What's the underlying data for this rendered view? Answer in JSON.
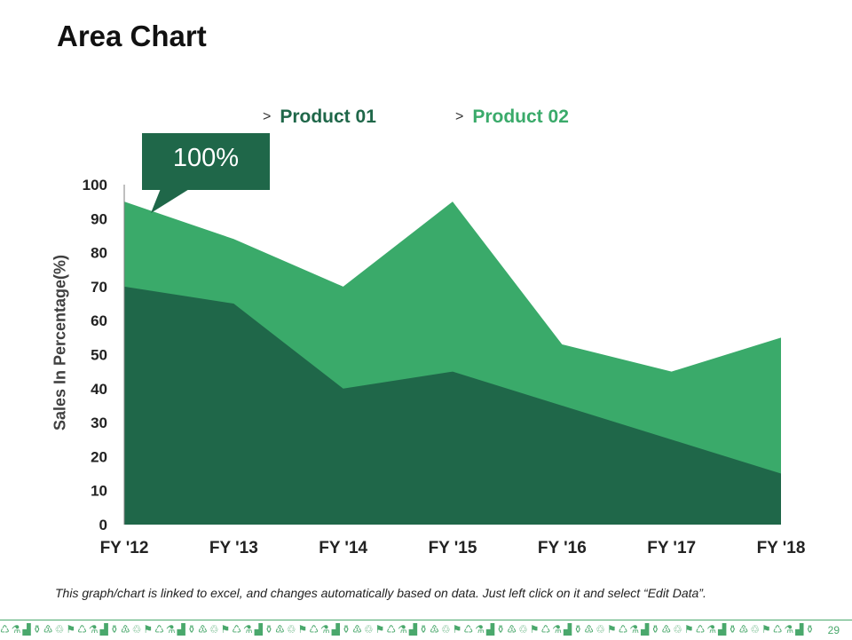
{
  "slide": {
    "title": "Area Chart",
    "callout_text": "100%",
    "footnote": "This graph/chart is linked to excel, and changes automatically based on data. Just left click on it and select “Edit Data”.",
    "page_number": "29",
    "footer_pattern": "♺⚗▟⚱♳♲⚑♺⚗▟⚱♳♲⚑♺⚗▟⚱♳♲⚑♺⚗▟⚱♳♲⚑♺⚗▟⚱♳♲⚑♺⚗▟⚱♳♲⚑♺⚗▟⚱♳♲⚑♺⚗▟⚱♳♲⚑♺⚗▟⚱♳♲⚑♺⚗▟⚱♳♲⚑♺⚗▟⚱♳♲⚑♺⚗▟⚱♳♲⚑♺⚗▟⚱♳♲⚑♺⚗▟⚱♳♲⚑♺⚗▟⚱♳♲⚑"
  },
  "legend": {
    "chevron": ">",
    "items": [
      {
        "label": "Product 01",
        "color": "#1f6749"
      },
      {
        "label": "Product 02",
        "color": "#3aaa6a"
      }
    ]
  },
  "chart_data": {
    "type": "area",
    "title": "",
    "xlabel": "",
    "ylabel": "Sales In Percentage(%)",
    "categories": [
      "FY '12",
      "FY '13",
      "FY '14",
      "FY '15",
      "FY '16",
      "FY '17",
      "FY '18"
    ],
    "series": [
      {
        "name": "Product 01",
        "values": [
          70,
          65,
          40,
          45,
          35,
          25,
          15
        ],
        "color": "#1f6749"
      },
      {
        "name": "Product 02",
        "values": [
          95,
          84,
          70,
          95,
          53,
          45,
          55
        ],
        "color": "#3aaa6a"
      }
    ],
    "ylim": [
      0,
      100
    ],
    "yticks": [
      0,
      10,
      20,
      30,
      40,
      50,
      60,
      70,
      80,
      90,
      100
    ],
    "grid": false
  }
}
